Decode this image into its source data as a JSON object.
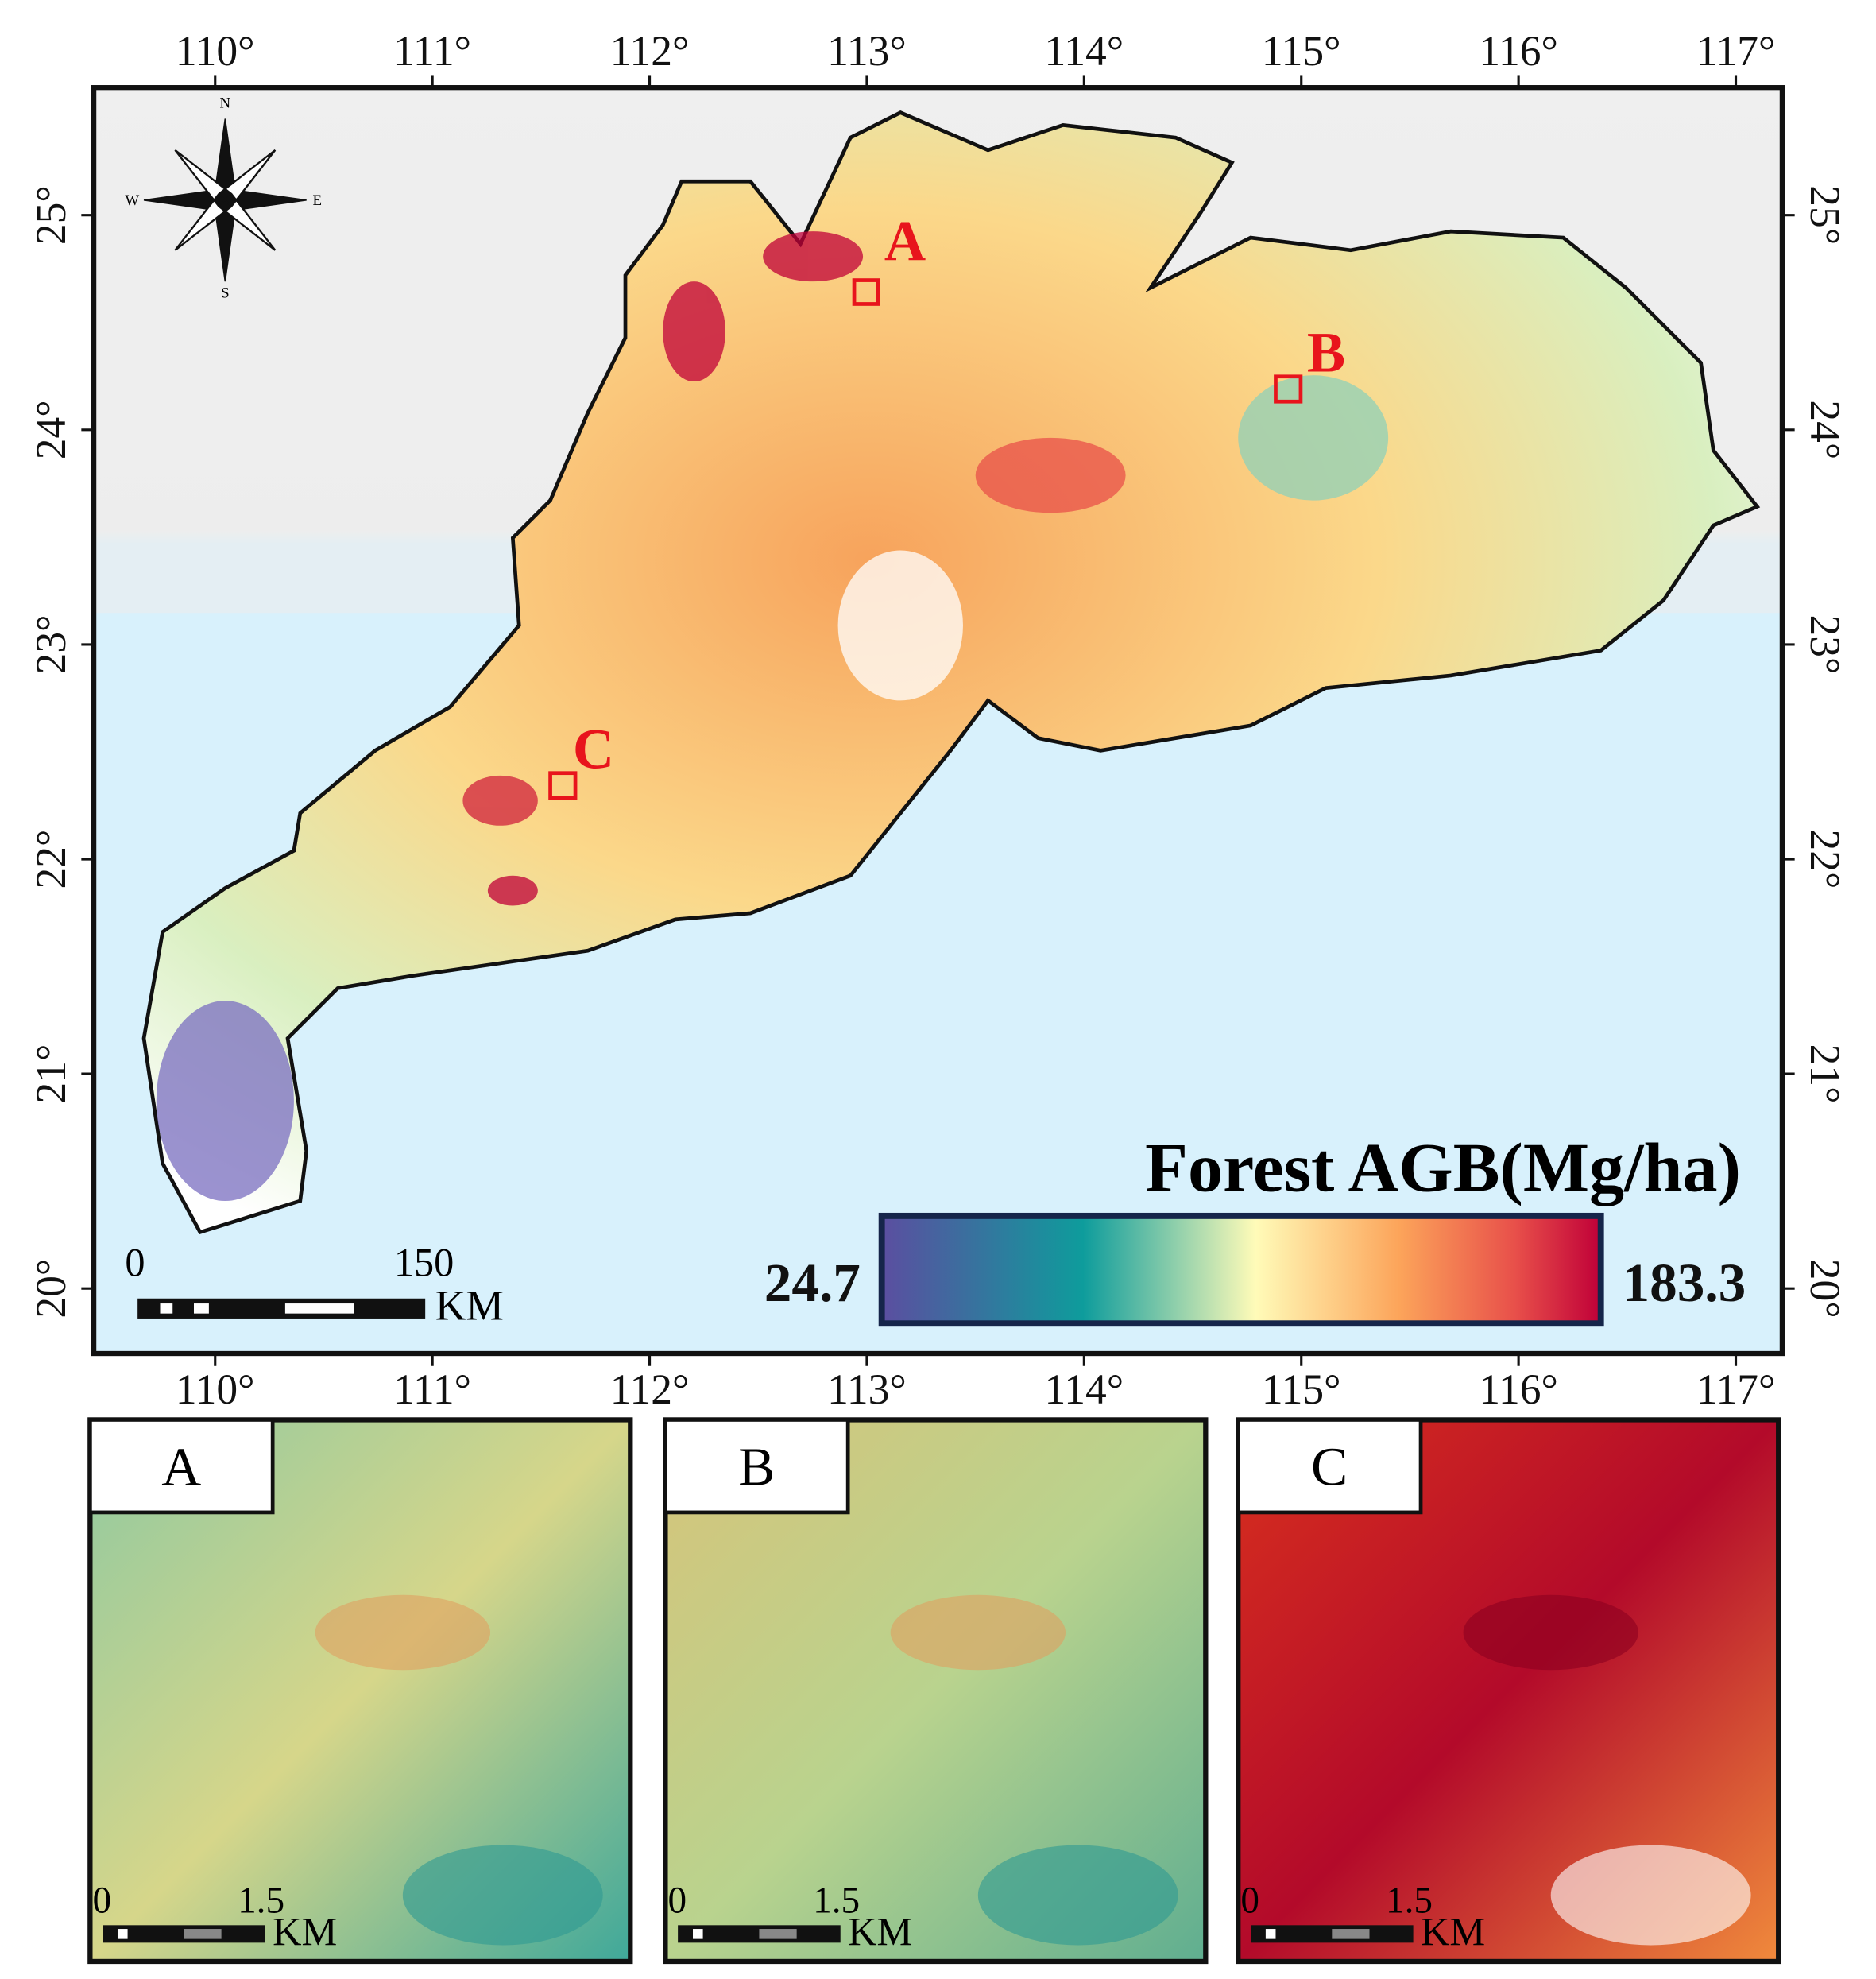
{
  "map": {
    "lon_ticks": [
      {
        "value": 110,
        "label": "110°"
      },
      {
        "value": 111,
        "label": "111°"
      },
      {
        "value": 112,
        "label": "112°"
      },
      {
        "value": 113,
        "label": "113°"
      },
      {
        "value": 114,
        "label": "114°"
      },
      {
        "value": 115,
        "label": "115°"
      },
      {
        "value": 116,
        "label": "116°"
      },
      {
        "value": 117,
        "label": "117°"
      }
    ],
    "lat_ticks": [
      {
        "value": 20,
        "label": "20°"
      },
      {
        "value": 21,
        "label": "21°"
      },
      {
        "value": 22,
        "label": "22°"
      },
      {
        "value": 23,
        "label": "23°"
      },
      {
        "value": 24,
        "label": "24°"
      },
      {
        "value": 25,
        "label": "25°"
      }
    ],
    "sites": [
      "A",
      "B",
      "C"
    ],
    "compass": {
      "n": "N",
      "s": "S",
      "e": "E",
      "w": "W"
    },
    "legend": {
      "title": "Forest AGB(Mg/ha)",
      "min": 24.7,
      "max": 183.3
    },
    "scale_bar": {
      "start": "0",
      "end": "150",
      "unit": "KM"
    }
  },
  "insets": [
    {
      "label": "A",
      "scale_start": "0",
      "scale_end": "1.5",
      "unit": "KM"
    },
    {
      "label": "B",
      "scale_start": "0",
      "scale_end": "1.5",
      "unit": "KM"
    },
    {
      "label": "C",
      "scale_start": "0",
      "scale_end": "1.5",
      "unit": "KM"
    }
  ]
}
